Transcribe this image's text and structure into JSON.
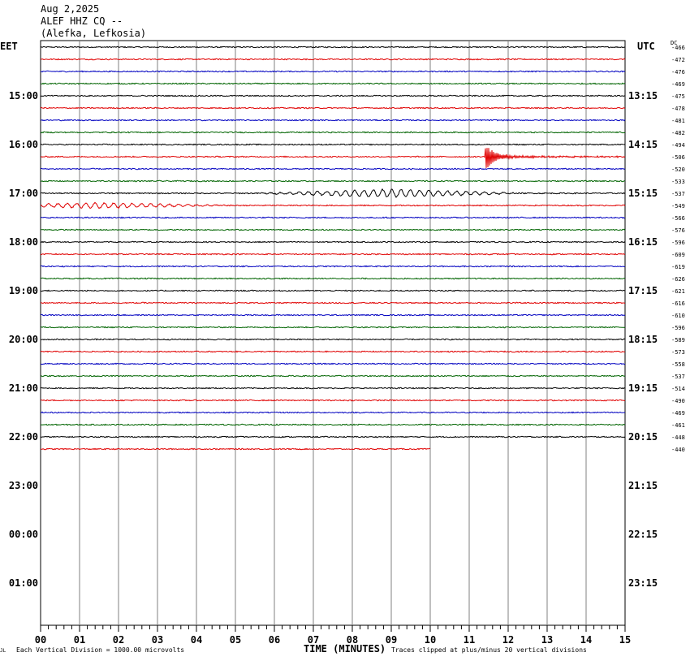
{
  "header": {
    "date": "Aug 2,2025",
    "station": "ALEF HHZ CQ --",
    "location": "(Alefka, Lefkosia)"
  },
  "left_timezone": "EET",
  "right_timezone": "UTC",
  "dc_label": "DC",
  "x_axis_title": "TIME (MINUTES)",
  "scale_note": "Each Vertical Division = 1000.00 microvolts",
  "clip_note": "Traces clipped at plus/minus 20 vertical divisions",
  "corner_mark": "JL",
  "colors": {
    "trace_cycle": [
      "#000000",
      "#e00000",
      "#0000c0",
      "#006400"
    ],
    "grid": "#808080"
  },
  "chart_data": {
    "type": "line",
    "title": "ALEF HHZ CQ --",
    "x_ticks": [
      "00",
      "01",
      "02",
      "03",
      "04",
      "05",
      "06",
      "07",
      "08",
      "09",
      "10",
      "11",
      "12",
      "13",
      "14",
      "15"
    ],
    "xlim": [
      0,
      15
    ],
    "left_hour_labels": [
      "15:00",
      "16:00",
      "17:00",
      "18:00",
      "19:00",
      "20:00",
      "21:00",
      "22:00",
      "23:00",
      "00:00",
      "01:00"
    ],
    "right_hour_labels": [
      "13:15",
      "14:15",
      "15:15",
      "16:15",
      "17:15",
      "18:15",
      "19:15",
      "20:15",
      "21:15",
      "22:15",
      "23:15"
    ],
    "dc_offsets": [
      -466,
      -472,
      -476,
      -469,
      -475,
      -478,
      -481,
      -482,
      -494,
      -506,
      -520,
      -533,
      -537,
      -549,
      -566,
      -576,
      -596,
      -609,
      -619,
      -626,
      -621,
      -616,
      -610,
      -596,
      -589,
      -573,
      -558,
      -537,
      -514,
      -490,
      -469,
      -461,
      -448,
      -440
    ],
    "events": [
      {
        "trace_index": 9,
        "minute": 11.4,
        "type": "earthquake",
        "amplitude": 1.4
      },
      {
        "trace_index": 12,
        "minute": 9.0,
        "type": "teleseism",
        "amplitude": 0.6
      },
      {
        "trace_index": 13,
        "minute": 1.5,
        "type": "teleseism",
        "amplitude": 0.4
      }
    ],
    "last_trace_end_minute": 10.0
  }
}
